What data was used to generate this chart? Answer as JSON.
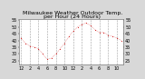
{
  "title": "Milwaukee Weather Outdoor Temp.",
  "subtitle": "per Hour (24 Hours)",
  "background_color": "#d8d8d8",
  "plot_bg_color": "#ffffff",
  "line_color": "#cc0000",
  "grid_color": "#888888",
  "hours": [
    0,
    1,
    2,
    3,
    4,
    5,
    6,
    7,
    8,
    9,
    10,
    11,
    12,
    13,
    14,
    15,
    16,
    17,
    18,
    19,
    20,
    21,
    22,
    23
  ],
  "temps": [
    42,
    38,
    36,
    35,
    34,
    30,
    26,
    27,
    30,
    34,
    38,
    43,
    47,
    50,
    52,
    53,
    51,
    48,
    46,
    46,
    44,
    43,
    42,
    40
  ],
  "ylim": [
    22,
    56
  ],
  "ytick_positions": [
    25,
    30,
    35,
    40,
    45,
    50,
    55
  ],
  "ytick_labels": [
    "25",
    "30",
    "35",
    "40",
    "45",
    "50",
    "55"
  ],
  "xtick_positions": [
    0,
    2,
    4,
    6,
    8,
    10,
    12,
    14,
    16,
    18,
    20,
    22
  ],
  "xtick_labels": [
    "12",
    "2",
    "4",
    "6",
    "8",
    "10",
    "12",
    "2",
    "4",
    "6",
    "8",
    "10"
  ],
  "vgrid_positions": [
    0,
    2,
    4,
    6,
    8,
    10,
    12,
    14,
    16,
    18,
    20,
    22
  ],
  "title_fontsize": 4.5,
  "tick_fontsize": 3.5,
  "marker_size": 1.2,
  "line_width": 0.3
}
